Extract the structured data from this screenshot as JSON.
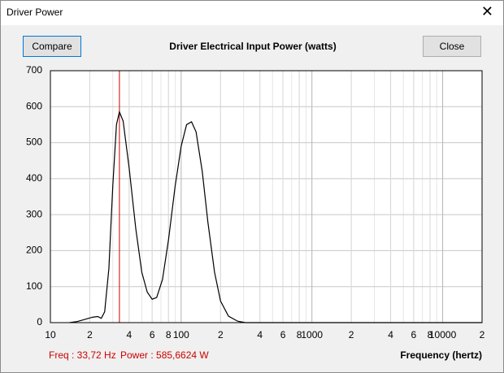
{
  "window": {
    "title": "Driver Power",
    "buttons": [
      "Compare",
      "Close"
    ]
  },
  "chart_data": {
    "type": "line",
    "title": "Driver Electrical Input Power (watts)",
    "x_label": "Frequency (hertz)",
    "x_log": true,
    "grid": true,
    "minor_grid": true,
    "xlim": [
      10,
      20000
    ],
    "ylim": [
      0,
      700
    ],
    "xticks": [
      10,
      {
        "value": 20,
        "label": "2"
      },
      {
        "value": 40,
        "label": "4"
      },
      {
        "value": 60,
        "label": "6"
      },
      {
        "value": 80,
        "label": "8"
      },
      100,
      {
        "value": 200,
        "label": "2"
      },
      {
        "value": 400,
        "label": "4"
      },
      {
        "value": 600,
        "label": "6"
      },
      {
        "value": 800,
        "label": "8"
      },
      1000,
      {
        "value": 2000,
        "label": "2"
      },
      {
        "value": 4000,
        "label": "4"
      },
      {
        "value": 6000,
        "label": "6"
      },
      {
        "value": 8000,
        "label": "8"
      },
      10000,
      {
        "value": 20000,
        "label": "2"
      }
    ],
    "yticks": [
      0,
      100,
      200,
      300,
      400,
      500,
      600,
      700
    ],
    "series": [
      {
        "name": "Power",
        "color": "#000000",
        "x": [
          14,
          16,
          18,
          21,
          23,
          24.5,
          26,
          28,
          30,
          32,
          33.72,
          36,
          40,
          45,
          50,
          55,
          60,
          65,
          72,
          80,
          90,
          100,
          110,
          120,
          130,
          145,
          160,
          180,
          200,
          230,
          270,
          310,
          20000
        ],
        "values": [
          0,
          3,
          8,
          15,
          17,
          12,
          30,
          150,
          380,
          550,
          585.6624,
          560,
          430,
          260,
          140,
          85,
          65,
          70,
          120,
          230,
          380,
          490,
          550,
          558,
          530,
          420,
          280,
          140,
          60,
          18,
          4,
          0,
          0
        ]
      }
    ],
    "marker": {
      "x": 33.72,
      "color": "#cc0000",
      "freq_label": "Freq : 33,72 Hz",
      "power_label": "Power : 585,6624 W"
    }
  }
}
